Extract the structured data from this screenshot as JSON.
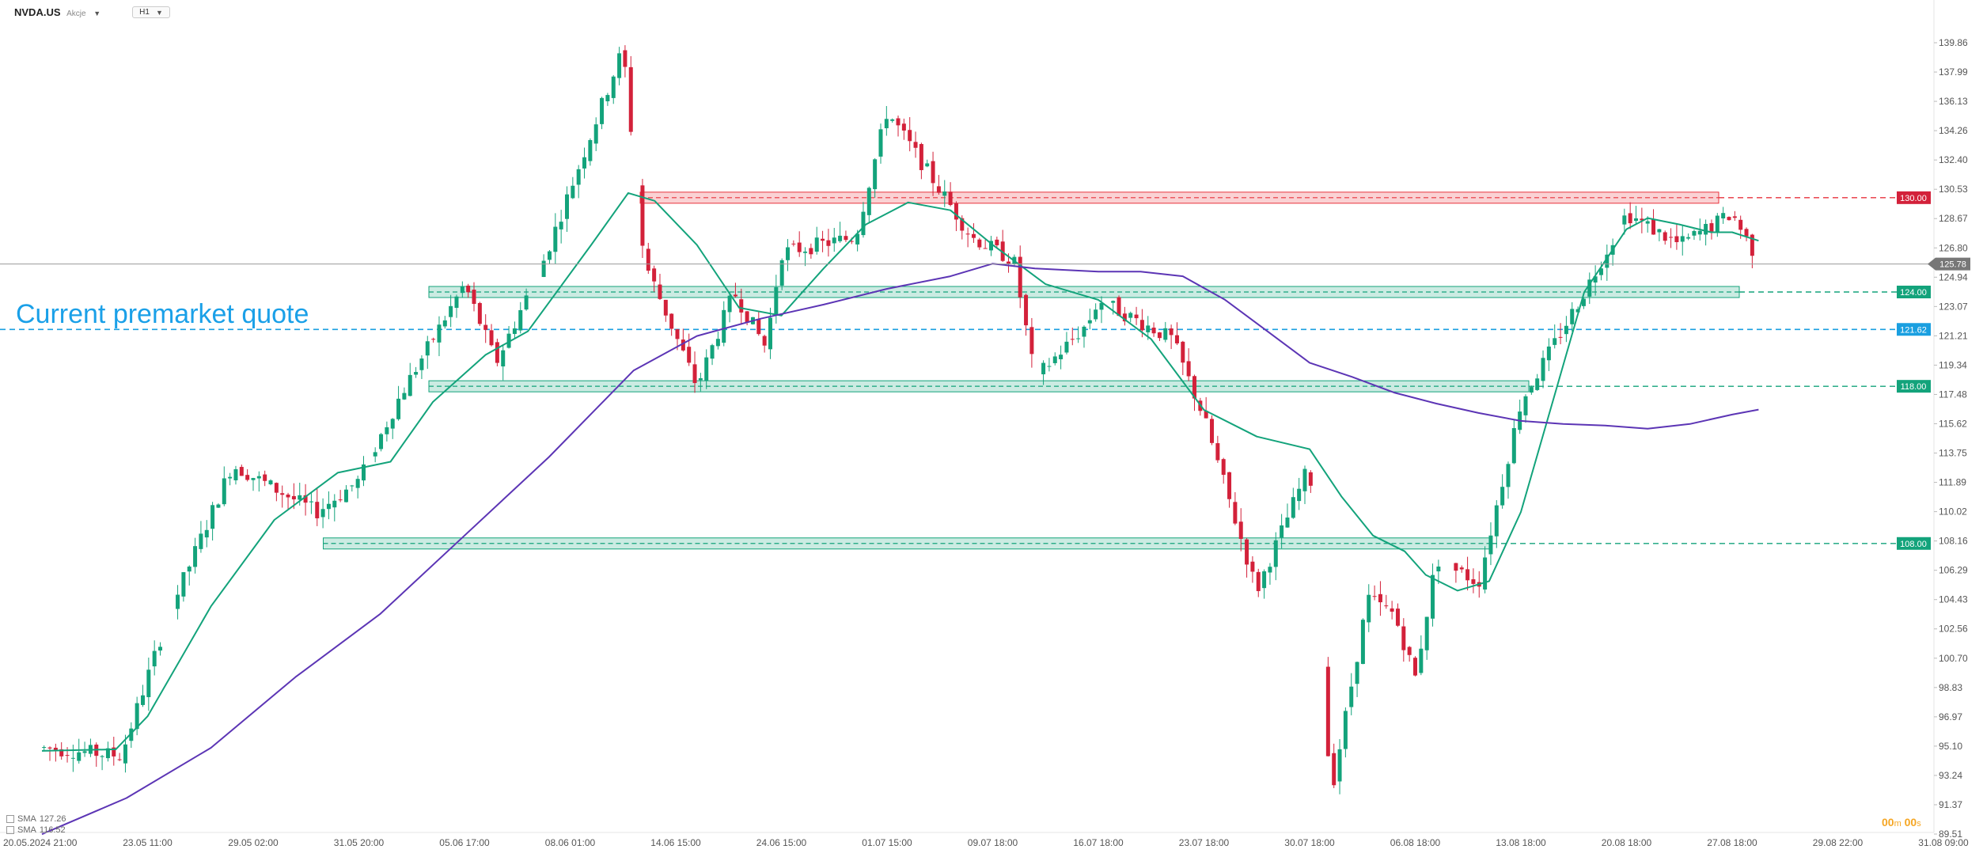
{
  "header": {
    "symbol": "NVDA.US",
    "symbol_sub": "Akcje",
    "timeframe": "H1"
  },
  "annotation": "Current premarket quote",
  "legend": [
    {
      "label": "SMA",
      "value": "127.26",
      "color": "#13a37b"
    },
    {
      "label": "SMA",
      "value": "116.52",
      "color": "#5c35b5"
    }
  ],
  "timer": {
    "m": "00",
    "m_unit": "m",
    "s": "00",
    "s_unit": "s"
  },
  "colors": {
    "up": "#13a37b",
    "down": "#d3213a",
    "sma_fast": "#13a37b",
    "sma_slow": "#5c35b5",
    "resistance": "#e8323c",
    "support": "#13a37b",
    "premarket": "#1a9fe0"
  },
  "chart_data": {
    "type": "candlestick",
    "symbol": "NVDA.US",
    "timeframe": "H1",
    "y_ticks": [
      "139.86",
      "137.99",
      "136.13",
      "134.26",
      "132.40",
      "130.53",
      "128.67",
      "126.80",
      "124.94",
      "123.07",
      "121.21",
      "119.34",
      "117.48",
      "115.62",
      "113.75",
      "111.89",
      "110.02",
      "108.16",
      "106.29",
      "104.43",
      "102.56",
      "100.70",
      "98.83",
      "96.97",
      "95.10",
      "93.24",
      "91.37",
      "89.51"
    ],
    "ylim": [
      89.51,
      139.86
    ],
    "x_ticks": [
      "20.05.2024 21:00",
      "23.05 11:00",
      "29.05 02:00",
      "31.05 20:00",
      "05.06 17:00",
      "08.06 01:00",
      "14.06 15:00",
      "24.06 15:00",
      "01.07 15:00",
      "09.07 18:00",
      "16.07 18:00",
      "23.07 18:00",
      "30.07 18:00",
      "06.08 18:00",
      "13.08 18:00",
      "20.08 18:00",
      "27.08 18:00",
      "29.08 22:00",
      "31.08 09:00"
    ],
    "current_price": 125.78,
    "levels": [
      {
        "value": 130.0,
        "label": "130.00",
        "kind": "resistance",
        "from_tick": 6
      },
      {
        "value": 124.0,
        "label": "124.00",
        "kind": "support",
        "from_tick": 4
      },
      {
        "value": 121.62,
        "label": "121.62",
        "kind": "premarket",
        "from_tick": 0
      },
      {
        "value": 118.0,
        "label": "118.00",
        "kind": "support",
        "from_tick": 4
      },
      {
        "value": 108.0,
        "label": "108.00",
        "kind": "support",
        "from_tick": 3
      }
    ],
    "sma_fast": {
      "name": "SMA",
      "value": "127.26"
    },
    "sma_slow": {
      "name": "SMA",
      "value": "116.52"
    },
    "path_x": [
      0,
      0.75,
      1.2,
      1.8,
      2.6,
      3.0,
      3.4,
      4.0,
      4.3,
      4.75,
      5.5,
      5.7,
      6.2,
      6.55,
      6.85,
      7.0,
      7.7,
      8.0,
      8.8,
      9.2,
      9.4,
      9.9,
      10.0,
      10.7,
      11.0,
      11.5,
      12.0,
      12.2,
      12.55,
      12.8,
      13.0,
      13.2,
      13.6,
      14.0,
      14.6,
      15.0,
      15.5,
      16.0,
      16.25,
      16.25
    ],
    "path_y": [
      95.0,
      94.5,
      103.5,
      113.0,
      110.0,
      112.0,
      117.5,
      124.5,
      119.5,
      126.0,
      139.5,
      126.0,
      118.0,
      124.0,
      120.5,
      126.5,
      127.5,
      135.5,
      127.5,
      126.0,
      118.5,
      122.0,
      123.5,
      121.0,
      116.0,
      105.0,
      113.0,
      92.0,
      104.5,
      103.5,
      99.5,
      107.0,
      105.5,
      117.0,
      124.0,
      129.0,
      127.0,
      129.0,
      126.0,
      125.78
    ],
    "sma_fast_x": [
      0,
      0.7,
      1.0,
      1.6,
      2.2,
      2.8,
      3.3,
      3.7,
      4.2,
      4.6,
      5.2,
      5.55,
      5.8,
      6.2,
      6.6,
      7.0,
      7.4,
      7.8,
      8.2,
      8.6,
      9.0,
      9.5,
      10.0,
      10.5,
      11.0,
      11.5,
      12.0,
      12.3,
      12.6,
      12.9,
      13.1,
      13.4,
      13.7,
      14.0,
      14.3,
      14.6,
      15.0,
      15.2,
      15.5,
      15.8,
      16.0,
      16.25
    ],
    "sma_fast_y": [
      94.8,
      94.9,
      97.0,
      104.0,
      109.5,
      112.5,
      113.2,
      117.0,
      120.0,
      121.5,
      127.0,
      130.3,
      129.8,
      127.0,
      123.0,
      122.5,
      125.5,
      128.3,
      129.7,
      129.2,
      127.0,
      124.5,
      123.5,
      121.0,
      116.5,
      114.8,
      114.0,
      111.0,
      108.5,
      107.5,
      106.0,
      105.0,
      105.6,
      110.0,
      117.0,
      124.0,
      128.0,
      128.7,
      128.3,
      127.8,
      127.8,
      127.26
    ],
    "sma_slow_x": [
      0,
      0.8,
      1.6,
      2.4,
      3.2,
      4.0,
      4.8,
      5.6,
      6.2,
      6.8,
      7.4,
      8.0,
      8.6,
      9.0,
      9.4,
      10.0,
      10.4,
      10.8,
      11.2,
      11.6,
      12.0,
      12.4,
      12.8,
      13.2,
      13.6,
      14.0,
      14.4,
      14.8,
      15.2,
      15.6,
      16.0,
      16.25
    ],
    "sma_slow_y": [
      89.5,
      91.8,
      95.0,
      99.5,
      103.5,
      108.5,
      113.5,
      119.0,
      121.2,
      122.3,
      123.2,
      124.2,
      125.0,
      125.8,
      125.5,
      125.3,
      125.3,
      125.0,
      123.5,
      121.5,
      119.5,
      118.6,
      117.6,
      116.9,
      116.3,
      115.8,
      115.6,
      115.5,
      115.3,
      115.6,
      116.2,
      116.52
    ]
  }
}
